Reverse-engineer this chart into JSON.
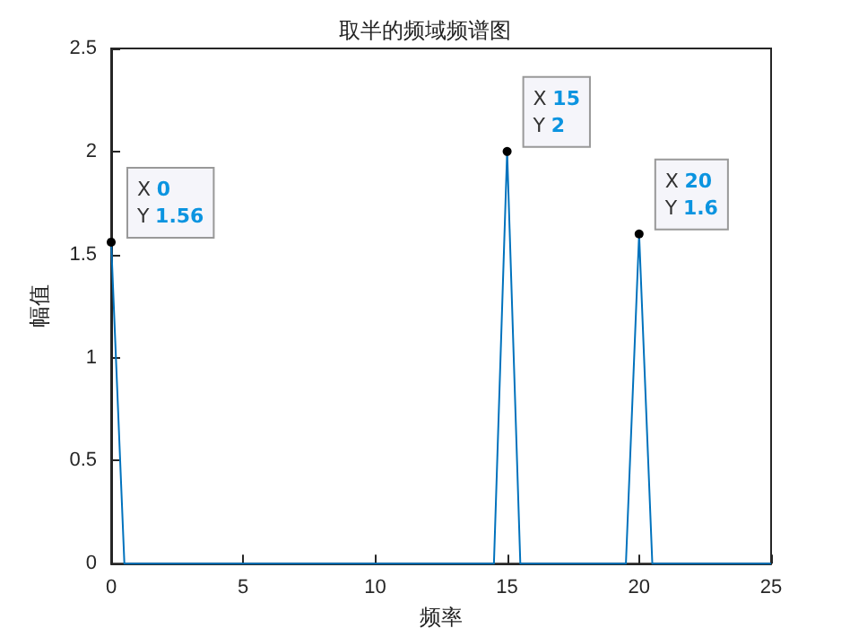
{
  "chart_data": {
    "type": "line",
    "title": "取半的频域频谱图",
    "xlabel": "频率",
    "ylabel": "幅值",
    "x": [
      0,
      0.5,
      14.5,
      15,
      15.5,
      19.5,
      20,
      20.5,
      25
    ],
    "series": [
      {
        "color": "#0072bd",
        "values": [
          1.56,
          0,
          0,
          2,
          0,
          0,
          1.6,
          0,
          0
        ]
      }
    ],
    "xlim": [
      0,
      25
    ],
    "xticks": [
      0,
      5,
      10,
      15,
      20,
      25
    ],
    "ylim": [
      0,
      2.5
    ],
    "yticks": [
      0,
      0.5,
      1,
      1.5,
      2,
      2.5
    ],
    "grid": false,
    "marker": "none",
    "line_style": "solid",
    "annotations": [
      {
        "text": "X 0\nY 1.56",
        "x": 0,
        "y": 1.56
      },
      {
        "text": "X 15\nY 2",
        "x": 15,
        "y": 2
      },
      {
        "text": "X 20\nY 1.6",
        "x": 20,
        "y": 1.6
      }
    ]
  }
}
